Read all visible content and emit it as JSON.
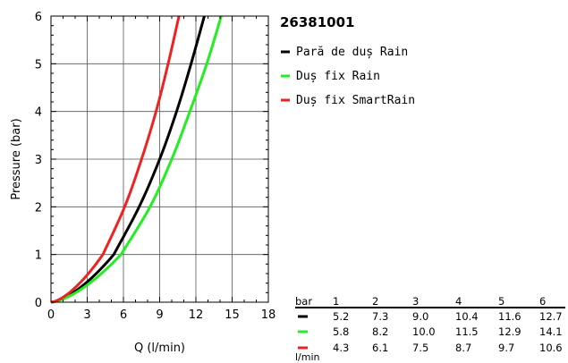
{
  "chart_data": {
    "type": "line",
    "title": "26381001",
    "xlabel": "Q (l/min)",
    "ylabel": "Pressure (bar)",
    "xlim": [
      0,
      18
    ],
    "ylim": [
      0,
      6
    ],
    "xticks": [
      0,
      3,
      6,
      9,
      12,
      15,
      18
    ],
    "yticks": [
      0,
      1,
      2,
      3,
      4,
      5,
      6
    ],
    "grid": true,
    "legend_position": "right",
    "series": [
      {
        "name": "Pară de duș Rain",
        "color": "#000000",
        "x": [
          0,
          5.2,
          7.3,
          9.0,
          10.4,
          11.6,
          12.7
        ],
        "y": [
          0,
          1,
          2,
          3,
          4,
          5,
          6
        ]
      },
      {
        "name": "Duș fix Rain",
        "color": "#22ee22",
        "x": [
          0,
          5.8,
          8.2,
          10.0,
          11.5,
          12.9,
          14.1
        ],
        "y": [
          0,
          1,
          2,
          3,
          4,
          5,
          6
        ]
      },
      {
        "name": "Duș fix SmartRain",
        "color": "#ee2222",
        "x": [
          0,
          4.3,
          6.1,
          7.5,
          8.7,
          9.7,
          10.6
        ],
        "y": [
          0,
          1,
          2,
          3,
          4,
          5,
          6
        ]
      }
    ],
    "table": {
      "header_label": "bar",
      "unit_label": "l/min",
      "pressures": [
        "1",
        "2",
        "3",
        "4",
        "5",
        "6"
      ],
      "rows": [
        [
          "5.2",
          "7.3",
          "9.0",
          "10.4",
          "11.6",
          "12.7"
        ],
        [
          "5.8",
          "8.2",
          "10.0",
          "11.5",
          "12.9",
          "14.1"
        ],
        [
          "4.3",
          "6.1",
          "7.5",
          "8.7",
          "9.7",
          "10.6"
        ]
      ]
    }
  }
}
